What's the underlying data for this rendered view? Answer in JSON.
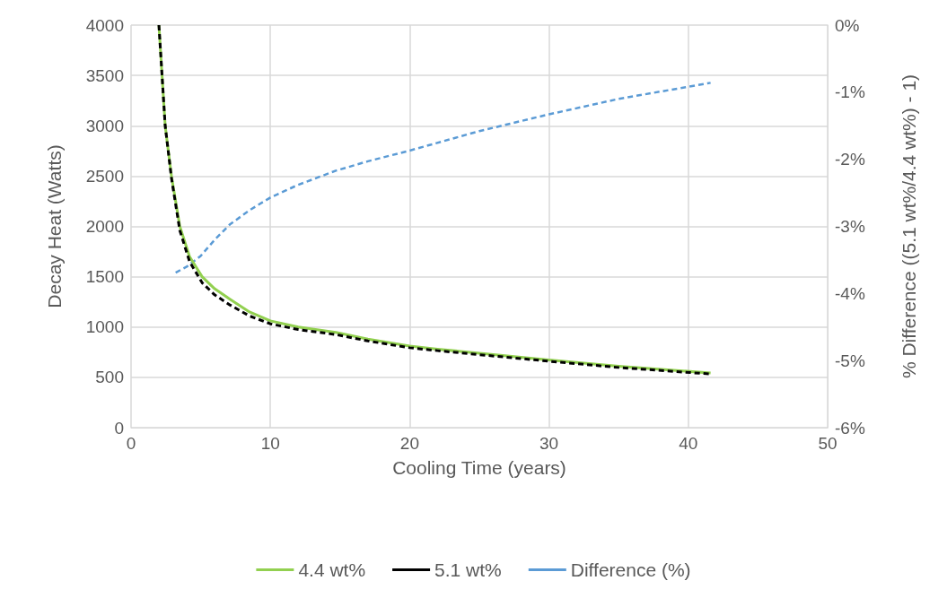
{
  "chart_data": {
    "type": "line",
    "xlabel": "Cooling Time (years)",
    "ylabel": "Decay Heat (Watts)",
    "y2label": "% Difference ((5.1 wt%/4.4 wt%) - 1)",
    "xlim": [
      0,
      50
    ],
    "xticks": [
      0,
      10,
      20,
      30,
      40,
      50
    ],
    "ylim": [
      0,
      4000
    ],
    "yticks": [
      0,
      500,
      1000,
      1500,
      2000,
      2500,
      3000,
      3500,
      4000
    ],
    "y2lim": [
      -6,
      0
    ],
    "y2ticks": [
      {
        "value": -6,
        "label": "-6%"
      },
      {
        "value": -5,
        "label": "-5%"
      },
      {
        "value": -4,
        "label": "-4%"
      },
      {
        "value": -3,
        "label": "-3%"
      },
      {
        "value": -2,
        "label": "-2%"
      },
      {
        "value": -1,
        "label": "-1%"
      },
      {
        "value": 0,
        "label": "0%"
      }
    ],
    "grid": true,
    "legend": "bottom",
    "marker": "none",
    "series": [
      {
        "name": "4.4 wt%",
        "color": "#92d050",
        "line_style": "solid",
        "x": [
          2.0,
          2.45,
          2.9,
          3.5,
          4.2,
          5.1,
          6,
          7.1,
          8.5,
          10,
          12,
          14.7,
          17,
          20,
          22,
          25,
          30,
          35,
          41.6
        ],
        "values": [
          4000,
          3000,
          2500,
          2000,
          1700,
          1500,
          1380,
          1276,
          1150,
          1061,
          1000,
          946,
          880,
          811,
          780,
          740,
          672,
          610,
          543
        ]
      },
      {
        "name": "5.1 wt%",
        "color": "#000000",
        "line_style": "dashed",
        "x": [
          2.0,
          2.45,
          2.9,
          3.5,
          4.2,
          5.1,
          6,
          7.1,
          8.5,
          10,
          12,
          14.7,
          17,
          20,
          22,
          25,
          30,
          35,
          41.6
        ],
        "values": [
          4000,
          3000,
          2480,
          1960,
          1650,
          1440,
          1320,
          1219,
          1110,
          1032,
          975,
          925,
          862,
          794,
          765,
          725,
          660,
          598,
          533
        ]
      },
      {
        "name": "Difference (%)",
        "color": "#5b9bd5",
        "line_style": "dashed",
        "axis": "y2",
        "x": [
          3.2,
          4,
          5,
          6,
          7.1,
          8.5,
          10,
          12,
          14.7,
          17,
          20,
          25,
          30,
          35,
          41.6
        ],
        "values": [
          -3.69,
          -3.6,
          -3.44,
          -3.2,
          -2.97,
          -2.76,
          -2.57,
          -2.38,
          -2.17,
          -2.03,
          -1.87,
          -1.58,
          -1.33,
          -1.1,
          -0.86
        ]
      }
    ]
  }
}
